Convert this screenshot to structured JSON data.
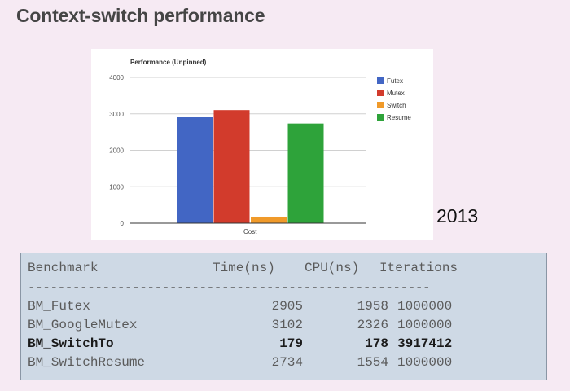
{
  "page": {
    "title": "Context-switch performance",
    "year_label": "2013"
  },
  "chart_data": {
    "type": "bar",
    "title": "Performance (Unpinned)",
    "categories": [
      "Cost"
    ],
    "series": [
      {
        "name": "Futex",
        "values": [
          2905
        ],
        "color": "#4266c4"
      },
      {
        "name": "Mutex",
        "values": [
          3102
        ],
        "color": "#d23b2c"
      },
      {
        "name": "Switch",
        "values": [
          179
        ],
        "color": "#f09a2a"
      },
      {
        "name": "Resume",
        "values": [
          2734
        ],
        "color": "#2ea33a"
      }
    ],
    "xlabel": "",
    "ylabel": "",
    "ylim": [
      0,
      4000
    ],
    "yticks": [
      "0",
      "1000",
      "2000",
      "3000",
      "4000"
    ],
    "grid": true,
    "legend_position": "right"
  },
  "benchmark_table": {
    "headers": {
      "name": "Benchmark",
      "time": "Time(ns)",
      "cpu": "CPU(ns)",
      "iterations": "Iterations"
    },
    "divider": "------------------------------------------------------",
    "rows": [
      {
        "name": "BM_Futex",
        "time": "2905",
        "cpu": "1958",
        "iterations": "1000000",
        "bold": false
      },
      {
        "name": "BM_GoogleMutex",
        "time": "3102",
        "cpu": "2326",
        "iterations": "1000000",
        "bold": false
      },
      {
        "name": "BM_SwitchTo",
        "time": "179",
        "cpu": "178",
        "iterations": "3917412",
        "bold": true
      },
      {
        "name": "BM_SwitchResume",
        "time": "2734",
        "cpu": "1554",
        "iterations": "1000000",
        "bold": false
      }
    ]
  }
}
